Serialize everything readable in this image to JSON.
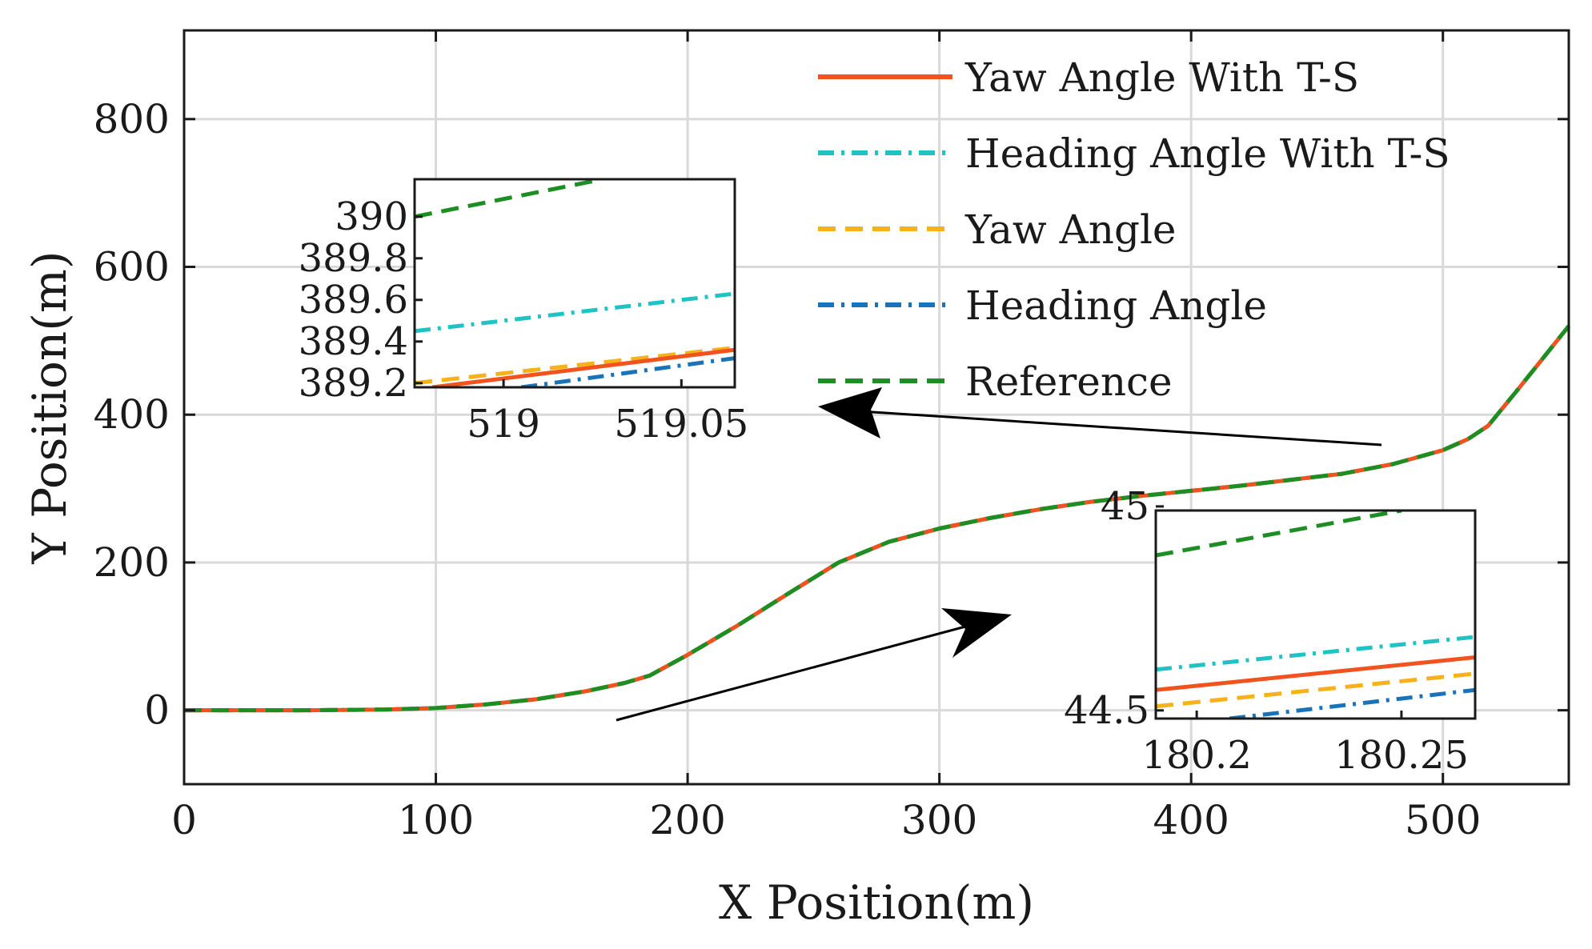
{
  "chart_data": {
    "type": "line",
    "title": "",
    "xlabel": "X Position(m)",
    "ylabel": "Y Position(m)",
    "xlim": [
      0,
      550
    ],
    "ylim": [
      -100,
      920
    ],
    "x_ticks": [
      0,
      100,
      200,
      300,
      400,
      500
    ],
    "y_ticks": [
      0,
      200,
      400,
      600,
      800
    ],
    "grid": true,
    "legend_position": "top-right",
    "colors": {
      "yaw_ts": "#F2521E",
      "heading_ts": "#1FC3C3",
      "yaw": "#F7B11A",
      "heading": "#1A73B8",
      "reference": "#1D8E24"
    },
    "series": [
      {
        "name": "Yaw Angle With T-S",
        "style": "solid",
        "x": [
          0,
          50,
          80,
          100,
          120,
          140,
          160,
          175,
          185,
          200,
          220,
          240,
          260,
          280,
          300,
          320,
          340,
          360,
          380,
          400,
          420,
          440,
          460,
          480,
          500,
          510,
          518,
          530,
          550
        ],
        "y": [
          0,
          0,
          1,
          3,
          8,
          15,
          26,
          37,
          47,
          75,
          115,
          158,
          200,
          228,
          246,
          260,
          272,
          282,
          290,
          297,
          304,
          312,
          320,
          333,
          352,
          367,
          385,
          435,
          520
        ]
      },
      {
        "name": "Heading Angle With T-S",
        "style": "dashdot",
        "x": [
          0,
          50,
          80,
          100,
          120,
          140,
          160,
          175,
          185,
          200,
          220,
          240,
          260,
          280,
          300,
          320,
          340,
          360,
          380,
          400,
          420,
          440,
          460,
          480,
          500,
          510,
          518,
          530,
          550
        ],
        "y": [
          0,
          0,
          1,
          3,
          8,
          15,
          26,
          37,
          47,
          75,
          115,
          158,
          200,
          228,
          246,
          260,
          272,
          282,
          290,
          297,
          304,
          312,
          320,
          333,
          352,
          367,
          385,
          435,
          520
        ]
      },
      {
        "name": "Yaw Angle",
        "style": "dashed",
        "x": [
          0,
          50,
          80,
          100,
          120,
          140,
          160,
          175,
          185,
          200,
          220,
          240,
          260,
          280,
          300,
          320,
          340,
          360,
          380,
          400,
          420,
          440,
          460,
          480,
          500,
          510,
          518,
          530,
          550
        ],
        "y": [
          0,
          0,
          1,
          3,
          8,
          15,
          26,
          37,
          47,
          75,
          115,
          158,
          200,
          228,
          246,
          260,
          272,
          282,
          290,
          297,
          304,
          312,
          320,
          333,
          352,
          367,
          385,
          435,
          520
        ]
      },
      {
        "name": "Heading Angle",
        "style": "dashdot",
        "x": [
          0,
          50,
          80,
          100,
          120,
          140,
          160,
          175,
          185,
          200,
          220,
          240,
          260,
          280,
          300,
          320,
          340,
          360,
          380,
          400,
          420,
          440,
          460,
          480,
          500,
          510,
          518,
          530,
          550
        ],
        "y": [
          0,
          0,
          1,
          3,
          8,
          15,
          26,
          37,
          47,
          75,
          115,
          158,
          200,
          228,
          246,
          260,
          272,
          282,
          290,
          297,
          304,
          312,
          320,
          333,
          352,
          367,
          385,
          435,
          520
        ]
      },
      {
        "name": "Reference",
        "style": "dashed",
        "x": [
          0,
          50,
          80,
          100,
          120,
          140,
          160,
          175,
          185,
          200,
          220,
          240,
          260,
          280,
          300,
          320,
          340,
          360,
          380,
          400,
          420,
          440,
          460,
          480,
          500,
          510,
          518,
          530,
          550
        ],
        "y": [
          0,
          0,
          1,
          3,
          8,
          15,
          26,
          37,
          47,
          75,
          115,
          158,
          200,
          228,
          246,
          260,
          272,
          282,
          290,
          297,
          304,
          312,
          320,
          333,
          352,
          367,
          385,
          435,
          520
        ]
      }
    ],
    "insets": [
      {
        "xlim": [
          518.975,
          519.065
        ],
        "ylim": [
          389.18,
          390.18
        ],
        "x_ticks": [
          519,
          519.05
        ],
        "x_tick_labels": [
          "519",
          "519.05"
        ],
        "y_ticks": [
          389.2,
          389.4,
          389.6,
          389.8,
          390
        ],
        "y_tick_labels": [
          "389.2",
          "389.4",
          "389.6",
          "389.8",
          "390"
        ],
        "lines": [
          {
            "series": "Reference",
            "x": [
              518.975,
              519.025
            ],
            "y": [
              390.0,
              390.17
            ]
          },
          {
            "series": "Heading Angle With T-S",
            "x": [
              518.975,
              519.065
            ],
            "y": [
              389.45,
              389.63
            ]
          },
          {
            "series": "Yaw Angle",
            "x": [
              518.975,
              519.065
            ],
            "y": [
              389.2,
              389.37
            ]
          },
          {
            "series": "Yaw Angle With T-S",
            "x": [
              518.98,
              519.065
            ],
            "y": [
              389.18,
              389.36
            ]
          },
          {
            "series": "Heading Angle",
            "x": [
              519.005,
              519.065
            ],
            "y": [
              389.18,
              389.32
            ]
          }
        ]
      },
      {
        "xlim": [
          180.19,
          180.268
        ],
        "ylim": [
          44.48,
          44.99
        ],
        "x_ticks": [
          180.2,
          180.25
        ],
        "x_tick_labels": [
          "180.2",
          "180.25"
        ],
        "y_ticks": [
          44.5,
          45
        ],
        "y_tick_labels": [
          "44.5",
          "45"
        ],
        "lines": [
          {
            "series": "Reference",
            "x": [
              180.19,
              180.25
            ],
            "y": [
              44.88,
              44.99
            ]
          },
          {
            "series": "Heading Angle With T-S",
            "x": [
              180.19,
              180.268
            ],
            "y": [
              44.6,
              44.68
            ]
          },
          {
            "series": "Yaw Angle With T-S",
            "x": [
              180.19,
              180.268
            ],
            "y": [
              44.55,
              44.63
            ]
          },
          {
            "series": "Yaw Angle",
            "x": [
              180.19,
              180.268
            ],
            "y": [
              44.51,
              44.59
            ]
          },
          {
            "series": "Heading Angle",
            "x": [
              180.208,
              180.268
            ],
            "y": [
              44.48,
              44.55
            ]
          }
        ]
      }
    ]
  }
}
